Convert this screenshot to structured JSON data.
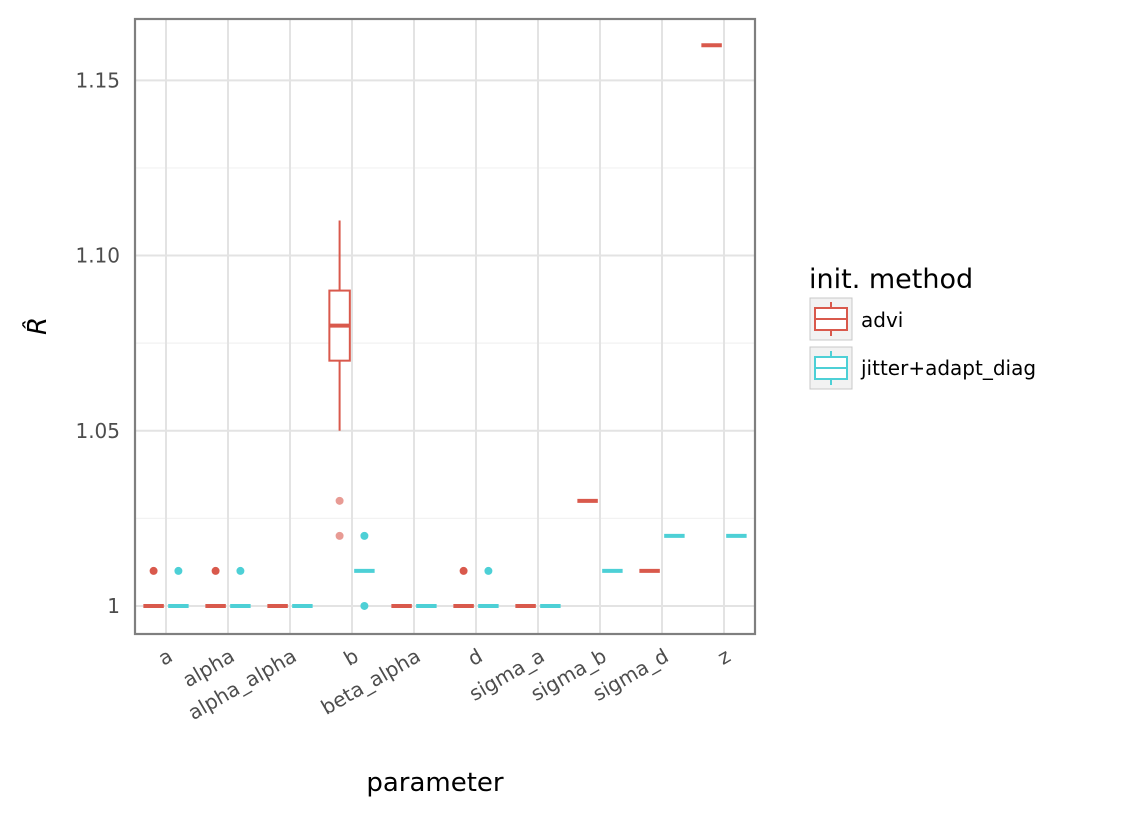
{
  "chart_data": {
    "type": "boxplot",
    "xlabel": "parameter",
    "ylabel": "R̂",
    "ylim": [
      0.992,
      1.1675
    ],
    "yticks": [
      1,
      1.05,
      1.1,
      1.15
    ],
    "ytick_labels": [
      "1",
      "1.05",
      "1.10",
      "1.15"
    ],
    "categories": [
      "a",
      "alpha",
      "alpha_alpha",
      "b",
      "beta_alpha",
      "d",
      "sigma_a",
      "sigma_b",
      "sigma_d",
      "z"
    ],
    "grid": true,
    "legend": {
      "title": "init. method",
      "placement": "right",
      "entries": [
        "advi",
        "jitter+adapt_diag"
      ]
    },
    "colors": {
      "advi": "#d9594c",
      "jitter": "#4dd0d6"
    },
    "series": [
      {
        "name": "advi",
        "boxes": [
          {
            "category": "a",
            "min": 1.0,
            "q1": 1.0,
            "median": 1.0,
            "q3": 1.0,
            "max": 1.0,
            "outliers": [
              1.01
            ]
          },
          {
            "category": "alpha",
            "min": 1.0,
            "q1": 1.0,
            "median": 1.0,
            "q3": 1.0,
            "max": 1.0,
            "outliers": [
              1.01
            ]
          },
          {
            "category": "alpha_alpha",
            "min": 1.0,
            "q1": 1.0,
            "median": 1.0,
            "q3": 1.0,
            "max": 1.0,
            "outliers": []
          },
          {
            "category": "b",
            "min": 1.05,
            "q1": 1.07,
            "median": 1.08,
            "q3": 1.09,
            "max": 1.11,
            "outliers": [
              1.02,
              1.03
            ]
          },
          {
            "category": "beta_alpha",
            "min": 1.0,
            "q1": 1.0,
            "median": 1.0,
            "q3": 1.0,
            "max": 1.0,
            "outliers": []
          },
          {
            "category": "d",
            "min": 1.0,
            "q1": 1.0,
            "median": 1.0,
            "q3": 1.0,
            "max": 1.0,
            "outliers": [
              1.01
            ]
          },
          {
            "category": "sigma_a",
            "min": 1.0,
            "q1": 1.0,
            "median": 1.0,
            "q3": 1.0,
            "max": 1.0,
            "outliers": []
          },
          {
            "category": "sigma_b",
            "min": 1.03,
            "q1": 1.03,
            "median": 1.03,
            "q3": 1.03,
            "max": 1.03,
            "outliers": []
          },
          {
            "category": "sigma_d",
            "min": 1.01,
            "q1": 1.01,
            "median": 1.01,
            "q3": 1.01,
            "max": 1.01,
            "outliers": []
          },
          {
            "category": "z",
            "min": 1.16,
            "q1": 1.16,
            "median": 1.16,
            "q3": 1.16,
            "max": 1.16,
            "outliers": []
          }
        ]
      },
      {
        "name": "jitter+adapt_diag",
        "boxes": [
          {
            "category": "a",
            "min": 1.0,
            "q1": 1.0,
            "median": 1.0,
            "q3": 1.0,
            "max": 1.0,
            "outliers": [
              1.01
            ]
          },
          {
            "category": "alpha",
            "min": 1.0,
            "q1": 1.0,
            "median": 1.0,
            "q3": 1.0,
            "max": 1.0,
            "outliers": [
              1.01
            ]
          },
          {
            "category": "alpha_alpha",
            "min": 1.0,
            "q1": 1.0,
            "median": 1.0,
            "q3": 1.0,
            "max": 1.0,
            "outliers": []
          },
          {
            "category": "b",
            "min": 1.01,
            "q1": 1.01,
            "median": 1.01,
            "q3": 1.01,
            "max": 1.01,
            "outliers": [
              1.0,
              1.02
            ]
          },
          {
            "category": "beta_alpha",
            "min": 1.0,
            "q1": 1.0,
            "median": 1.0,
            "q3": 1.0,
            "max": 1.0,
            "outliers": []
          },
          {
            "category": "d",
            "min": 1.0,
            "q1": 1.0,
            "median": 1.0,
            "q3": 1.0,
            "max": 1.0,
            "outliers": [
              1.01
            ]
          },
          {
            "category": "sigma_a",
            "min": 1.0,
            "q1": 1.0,
            "median": 1.0,
            "q3": 1.0,
            "max": 1.0,
            "outliers": []
          },
          {
            "category": "sigma_b",
            "min": 1.01,
            "q1": 1.01,
            "median": 1.01,
            "q3": 1.01,
            "max": 1.01,
            "outliers": []
          },
          {
            "category": "sigma_d",
            "min": 1.02,
            "q1": 1.02,
            "median": 1.02,
            "q3": 1.02,
            "max": 1.02,
            "outliers": []
          },
          {
            "category": "z",
            "min": 1.02,
            "q1": 1.02,
            "median": 1.02,
            "q3": 1.02,
            "max": 1.02,
            "outliers": []
          }
        ]
      }
    ]
  }
}
